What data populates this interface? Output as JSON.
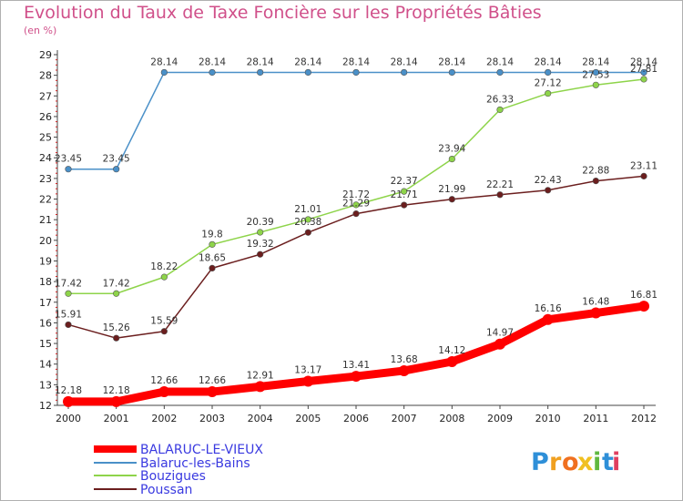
{
  "title": "Evolution du Taux de Taxe Foncière sur les Propriétés Bâties",
  "subtitle": "(en %)",
  "brand": {
    "letters": [
      "P",
      "r",
      "o",
      "x",
      "i",
      "t",
      "i"
    ],
    "colors": [
      "#2e8fd8",
      "#f0a020",
      "#f07020",
      "#f0c020",
      "#60b840",
      "#2e8fd8",
      "#e04060"
    ]
  },
  "chart_data": {
    "type": "line",
    "x": [
      "2000",
      "2001",
      "2002",
      "2003",
      "2004",
      "2005",
      "2006",
      "2007",
      "2008",
      "2009",
      "2010",
      "2011",
      "2012"
    ],
    "ylim": [
      12,
      29
    ],
    "yticks": [
      "12",
      "13",
      "14",
      "15",
      "16",
      "17",
      "18",
      "19",
      "20",
      "21",
      "22",
      "23",
      "24",
      "25",
      "26",
      "27",
      "28",
      "29"
    ],
    "grid": false,
    "legend_position": "bottom-left",
    "series": [
      {
        "name": "BALARUC-LE-VIEUX",
        "color": "#ff0000",
        "values": [
          12.18,
          12.18,
          12.66,
          12.66,
          12.91,
          13.17,
          13.41,
          13.68,
          14.12,
          14.97,
          16.16,
          16.48,
          16.81
        ],
        "labels": [
          "12.18",
          "12.18",
          "12.66",
          "12.66",
          "12.91",
          "13.17",
          "13.41",
          "13.68",
          "14.12",
          "14.97",
          "16.16",
          "16.48",
          "16.81"
        ]
      },
      {
        "name": "Balaruc-les-Bains",
        "color": "#4a90c8",
        "values": [
          23.45,
          23.45,
          28.14,
          28.14,
          28.14,
          28.14,
          28.14,
          28.14,
          28.14,
          28.14,
          28.14,
          28.14,
          28.14
        ],
        "labels": [
          "23.45",
          "23.45",
          "28.14",
          "28.14",
          "28.14",
          "28.14",
          "28.14",
          "28.14",
          "28.14",
          "28.14",
          "28.14",
          "28.14",
          "28.14"
        ]
      },
      {
        "name": "Bouzigues",
        "color": "#8ed44a",
        "values": [
          17.42,
          17.42,
          18.22,
          19.8,
          20.39,
          21.01,
          21.72,
          22.37,
          23.94,
          26.33,
          27.12,
          27.53,
          27.81
        ],
        "labels": [
          "17.42",
          "17.42",
          "18.22",
          "19.8",
          "20.39",
          "21.01",
          "21.72",
          "22.37",
          "23.94",
          "26.33",
          "27.12",
          "27.53",
          "27.81"
        ]
      },
      {
        "name": "Poussan",
        "color": "#6b1e1e",
        "values": [
          15.91,
          15.26,
          15.59,
          18.65,
          19.32,
          20.38,
          21.29,
          21.71,
          21.99,
          22.21,
          22.43,
          22.88,
          23.11
        ],
        "labels": [
          "15.91",
          "15.26",
          "15.59",
          "18.65",
          "19.32",
          "20.38",
          "21.29",
          "21.71",
          "21.99",
          "22.21",
          "22.43",
          "22.88",
          "23.11"
        ]
      }
    ]
  }
}
